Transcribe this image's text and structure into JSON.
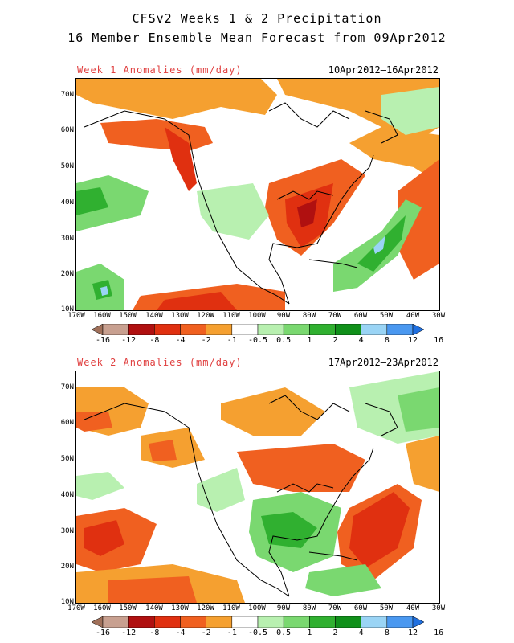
{
  "title_line1": "CFSv2 Weeks 1 & 2 Precipitation",
  "title_line2": "16 Member Ensemble Mean Forecast from 09Apr2012",
  "panels": [
    {
      "label": "Week 1 Anomalies (mm/day)",
      "dates": "10Apr2012–16Apr2012"
    },
    {
      "label": "Week 2 Anomalies (mm/day)",
      "dates": "17Apr2012–23Apr2012"
    }
  ],
  "lat_labels": [
    "70N",
    "60N",
    "50N",
    "40N",
    "30N",
    "20N",
    "10N"
  ],
  "lon_labels": [
    "170W",
    "160W",
    "150W",
    "140W",
    "130W",
    "120W",
    "110W",
    "100W",
    "90W",
    "80W",
    "70W",
    "60W",
    "50W",
    "40W",
    "30W"
  ],
  "colorbar": {
    "ticks": [
      "-16",
      "-12",
      "-8",
      "-4",
      "-2",
      "-1",
      "-0.5",
      "0.5",
      "1",
      "2",
      "4",
      "8",
      "12",
      "16"
    ],
    "colors": [
      "#a0705a",
      "#c8a090",
      "#b01010",
      "#e03010",
      "#f06020",
      "#f5a030",
      "#ffffff",
      "#b8f0b0",
      "#7ad870",
      "#30b030",
      "#10901a",
      "#9ad4f5",
      "#4a98f0",
      "#2070e0"
    ]
  }
}
